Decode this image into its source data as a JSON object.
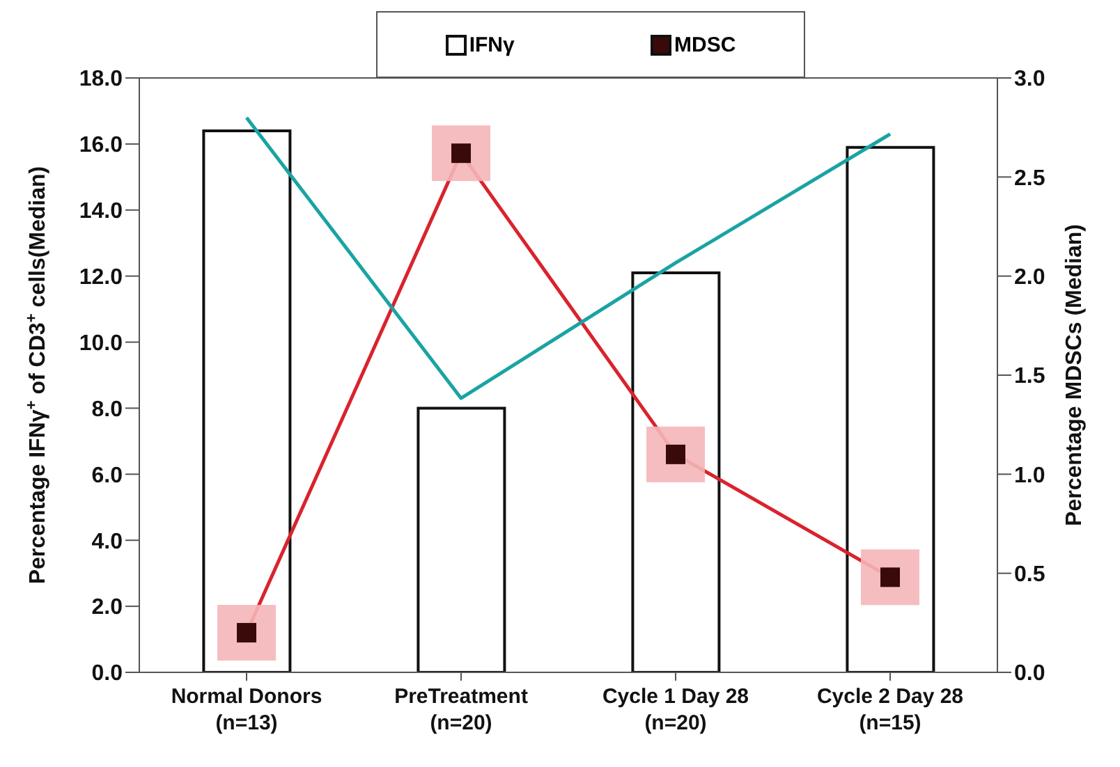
{
  "chart_data": {
    "type": "bar",
    "categories": [
      "Normal Donors\n(n=13)",
      "PreTreatment\n(n=20)",
      "Cycle 1 Day 28\n(n=20)",
      "Cycle 2 Day 28\n(n=15)"
    ],
    "series": [
      {
        "name": "IFNγ",
        "color": "#ffffff",
        "values": [
          16.4,
          8.0,
          12.1,
          15.9
        ]
      },
      {
        "name": "MDSC",
        "type": "line",
        "axis": "y2",
        "color": "#3a0a0a",
        "marker": "square",
        "values": [
          0.2,
          2.62,
          1.1,
          0.48
        ]
      },
      {
        "type": "line",
        "color": "#1aa3a3",
        "marker": "none",
        "values": [
          16.8,
          8.3,
          12.4,
          16.3
        ]
      }
    ],
    "ylabel": "Percentage IFNγ$^{+}$ of CD3$^{+}$ cells(Median)",
    "y2label": "Percentage MDSCs (Median)",
    "ylim": [
      0,
      18
    ],
    "yticks": [
      {
        "value": 0,
        "label": "0.0"
      },
      {
        "value": 2,
        "label": "2.0"
      },
      {
        "value": 4,
        "label": "4.0"
      },
      {
        "value": 6,
        "label": "6.0"
      },
      {
        "value": 8,
        "label": "8.0"
      },
      {
        "value": 10,
        "label": "10.0"
      },
      {
        "value": 12,
        "label": "12.0"
      },
      {
        "value": 14,
        "label": "14.0"
      },
      {
        "value": 16,
        "label": "16.0"
      },
      {
        "value": 18,
        "label": "18.0"
      }
    ],
    "y2lim": [
      0,
      3
    ],
    "y2ticks": [
      {
        "value": 0,
        "label": "0.0"
      },
      {
        "value": 0.5,
        "label": "0.5"
      },
      {
        "value": 1,
        "label": "1.0"
      },
      {
        "value": 1.5,
        "label": "1.5"
      },
      {
        "value": 2,
        "label": "2.0"
      },
      {
        "value": 2.5,
        "label": "2.5"
      },
      {
        "value": 3,
        "label": "3.0"
      }
    ],
    "grid": false,
    "legend": "top"
  }
}
